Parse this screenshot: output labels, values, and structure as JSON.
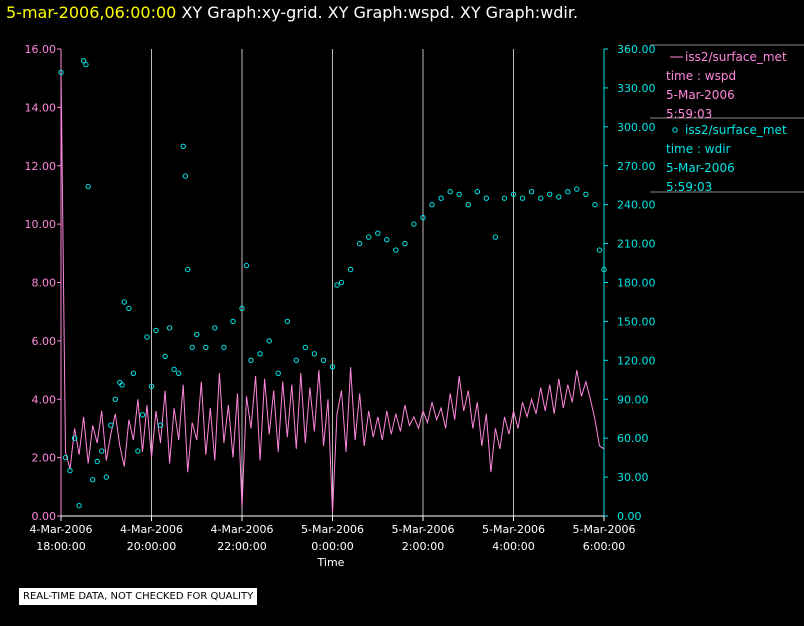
{
  "header": {
    "datetime": "5-mar-2006,06:00:00",
    "titles": "XY Graph:xy-grid.  XY Graph:wspd.  XY Graph:wdir."
  },
  "colors": {
    "wspd": "#ff88dd",
    "wdir": "#00e6e6",
    "grid": "#bbbbbb",
    "background": "#000000"
  },
  "footer": {
    "disclaimer": "REAL-TIME DATA, NOT CHECKED FOR QUALITY"
  },
  "chart_data": {
    "type": "line",
    "xlabel": "Time",
    "xlim_hours": [
      18,
      30
    ],
    "x_ticks": [
      {
        "h": 18,
        "date": "4-Mar-2006",
        "time": "18:00:00"
      },
      {
        "h": 20,
        "date": "4-Mar-2006",
        "time": "20:00:00"
      },
      {
        "h": 22,
        "date": "4-Mar-2006",
        "time": "22:00:00"
      },
      {
        "h": 24,
        "date": "5-Mar-2006",
        "time": "0:00:00"
      },
      {
        "h": 26,
        "date": "5-Mar-2006",
        "time": "2:00:00"
      },
      {
        "h": 28,
        "date": "5-Mar-2006",
        "time": "4:00:00"
      },
      {
        "h": 30,
        "date": "5-Mar-2006",
        "time": "6:00:00"
      }
    ],
    "y_left": {
      "ylim": [
        0,
        16
      ],
      "ticks": [
        "0.00",
        "2.00",
        "4.00",
        "6.00",
        "8.00",
        "10.00",
        "12.00",
        "14.00",
        "16.00"
      ]
    },
    "y_right": {
      "ylim": [
        0,
        360
      ],
      "ticks": [
        "0.00",
        "30.00",
        "60.00",
        "90.00",
        "120.00",
        "150.00",
        "180.00",
        "210.00",
        "240.00",
        "270.00",
        "300.00",
        "330.00",
        "360.00"
      ]
    },
    "legend": [
      {
        "series": "wspd",
        "lines": [
          "iss2/surface_met",
          "time : wspd",
          "5-Mar-2006",
          "5:59:03"
        ]
      },
      {
        "series": "wdir",
        "lines": [
          "iss2/surface_met",
          "time : wdir",
          "5-Mar-2006",
          "5:59:03"
        ]
      }
    ],
    "series": [
      {
        "name": "wspd",
        "axis": "left",
        "style": "line",
        "points": [
          [
            18.0,
            15.3
          ],
          [
            18.1,
            2.2
          ],
          [
            18.2,
            1.6
          ],
          [
            18.3,
            3.0
          ],
          [
            18.4,
            2.1
          ],
          [
            18.5,
            3.4
          ],
          [
            18.6,
            1.8
          ],
          [
            18.7,
            3.1
          ],
          [
            18.8,
            2.5
          ],
          [
            18.9,
            3.6
          ],
          [
            19.0,
            1.9
          ],
          [
            19.1,
            2.8
          ],
          [
            19.2,
            3.5
          ],
          [
            19.3,
            2.4
          ],
          [
            19.4,
            1.7
          ],
          [
            19.5,
            3.3
          ],
          [
            19.6,
            2.6
          ],
          [
            19.7,
            4.0
          ],
          [
            19.8,
            2.2
          ],
          [
            19.9,
            3.8
          ],
          [
            20.0,
            2.0
          ],
          [
            20.1,
            3.6
          ],
          [
            20.2,
            2.5
          ],
          [
            20.3,
            4.3
          ],
          [
            20.4,
            1.8
          ],
          [
            20.5,
            3.7
          ],
          [
            20.6,
            2.6
          ],
          [
            20.7,
            4.5
          ],
          [
            20.8,
            1.5
          ],
          [
            20.9,
            3.2
          ],
          [
            21.0,
            2.6
          ],
          [
            21.1,
            4.6
          ],
          [
            21.2,
            2.1
          ],
          [
            21.3,
            3.7
          ],
          [
            21.4,
            1.9
          ],
          [
            21.5,
            4.9
          ],
          [
            21.6,
            2.5
          ],
          [
            21.7,
            3.8
          ],
          [
            21.8,
            2.0
          ],
          [
            21.9,
            4.2
          ],
          [
            22.0,
            0.3
          ],
          [
            22.1,
            4.1
          ],
          [
            22.2,
            3.0
          ],
          [
            22.3,
            4.8
          ],
          [
            22.4,
            1.9
          ],
          [
            22.5,
            4.7
          ],
          [
            22.6,
            2.8
          ],
          [
            22.7,
            4.3
          ],
          [
            22.8,
            2.2
          ],
          [
            22.9,
            4.6
          ],
          [
            23.0,
            2.7
          ],
          [
            23.1,
            4.5
          ],
          [
            23.2,
            2.3
          ],
          [
            23.3,
            4.9
          ],
          [
            23.4,
            2.5
          ],
          [
            23.5,
            4.4
          ],
          [
            23.6,
            2.9
          ],
          [
            23.7,
            5.0
          ],
          [
            23.8,
            2.4
          ],
          [
            23.9,
            4.0
          ],
          [
            24.0,
            0.1
          ],
          [
            24.1,
            3.5
          ],
          [
            24.2,
            4.3
          ],
          [
            24.3,
            2.2
          ],
          [
            24.4,
            5.1
          ],
          [
            24.5,
            2.6
          ],
          [
            24.6,
            4.2
          ],
          [
            24.7,
            2.4
          ],
          [
            24.8,
            3.6
          ],
          [
            24.9,
            2.7
          ],
          [
            25.0,
            3.4
          ],
          [
            25.1,
            2.6
          ],
          [
            25.2,
            3.6
          ],
          [
            25.3,
            2.8
          ],
          [
            25.4,
            3.5
          ],
          [
            25.5,
            2.9
          ],
          [
            25.6,
            3.8
          ],
          [
            25.7,
            3.1
          ],
          [
            25.8,
            3.4
          ],
          [
            25.9,
            3.0
          ],
          [
            26.0,
            3.6
          ],
          [
            26.1,
            3.2
          ],
          [
            26.2,
            3.9
          ],
          [
            26.3,
            3.3
          ],
          [
            26.4,
            3.7
          ],
          [
            26.5,
            3.0
          ],
          [
            26.6,
            4.2
          ],
          [
            26.7,
            3.3
          ],
          [
            26.8,
            4.8
          ],
          [
            26.9,
            3.6
          ],
          [
            27.0,
            4.3
          ],
          [
            27.1,
            3.0
          ],
          [
            27.2,
            3.9
          ],
          [
            27.3,
            2.4
          ],
          [
            27.4,
            3.5
          ],
          [
            27.5,
            1.5
          ],
          [
            27.6,
            3.0
          ],
          [
            27.7,
            2.3
          ],
          [
            27.8,
            3.4
          ],
          [
            27.9,
            2.8
          ],
          [
            28.0,
            3.6
          ],
          [
            28.1,
            3.0
          ],
          [
            28.2,
            3.9
          ],
          [
            28.3,
            3.4
          ],
          [
            28.4,
            4.0
          ],
          [
            28.5,
            3.5
          ],
          [
            28.6,
            4.4
          ],
          [
            28.7,
            3.6
          ],
          [
            28.8,
            4.5
          ],
          [
            28.9,
            3.5
          ],
          [
            29.0,
            4.7
          ],
          [
            29.1,
            3.7
          ],
          [
            29.2,
            4.5
          ],
          [
            29.3,
            3.9
          ],
          [
            29.4,
            5.0
          ],
          [
            29.5,
            4.1
          ],
          [
            29.6,
            4.6
          ],
          [
            29.7,
            4.0
          ],
          [
            29.8,
            3.3
          ],
          [
            29.9,
            2.4
          ],
          [
            30.0,
            2.3
          ]
        ]
      },
      {
        "name": "wdir",
        "axis": "right",
        "style": "scatter",
        "points": [
          [
            18.0,
            342
          ],
          [
            18.1,
            45
          ],
          [
            18.2,
            35
          ],
          [
            18.3,
            60
          ],
          [
            18.4,
            8
          ],
          [
            18.5,
            351
          ],
          [
            18.55,
            348
          ],
          [
            18.6,
            254
          ],
          [
            18.7,
            28
          ],
          [
            18.8,
            42
          ],
          [
            18.9,
            50
          ],
          [
            19.0,
            30
          ],
          [
            19.1,
            70
          ],
          [
            19.2,
            90
          ],
          [
            19.3,
            103
          ],
          [
            19.35,
            101
          ],
          [
            19.4,
            165
          ],
          [
            19.5,
            160
          ],
          [
            19.6,
            110
          ],
          [
            19.7,
            50
          ],
          [
            19.8,
            78
          ],
          [
            19.9,
            138
          ],
          [
            20.0,
            100
          ],
          [
            20.1,
            143
          ],
          [
            20.2,
            70
          ],
          [
            20.3,
            123
          ],
          [
            20.4,
            145
          ],
          [
            20.5,
            113
          ],
          [
            20.6,
            110
          ],
          [
            20.7,
            285
          ],
          [
            20.75,
            262
          ],
          [
            20.8,
            190
          ],
          [
            20.9,
            130
          ],
          [
            21.0,
            140
          ],
          [
            21.2,
            130
          ],
          [
            21.4,
            145
          ],
          [
            21.6,
            130
          ],
          [
            21.8,
            150
          ],
          [
            22.0,
            160
          ],
          [
            22.1,
            193
          ],
          [
            22.2,
            120
          ],
          [
            22.4,
            125
          ],
          [
            22.6,
            135
          ],
          [
            22.8,
            110
          ],
          [
            23.0,
            150
          ],
          [
            23.2,
            120
          ],
          [
            23.4,
            130
          ],
          [
            23.6,
            125
          ],
          [
            23.8,
            120
          ],
          [
            24.0,
            115
          ],
          [
            24.1,
            178
          ],
          [
            24.2,
            180
          ],
          [
            24.4,
            190
          ],
          [
            24.6,
            210
          ],
          [
            24.8,
            215
          ],
          [
            25.0,
            218
          ],
          [
            25.2,
            213
          ],
          [
            25.4,
            205
          ],
          [
            25.6,
            210
          ],
          [
            25.8,
            225
          ],
          [
            26.0,
            230
          ],
          [
            26.2,
            240
          ],
          [
            26.4,
            245
          ],
          [
            26.6,
            250
          ],
          [
            26.8,
            248
          ],
          [
            27.0,
            240
          ],
          [
            27.2,
            250
          ],
          [
            27.4,
            245
          ],
          [
            27.6,
            215
          ],
          [
            27.8,
            245
          ],
          [
            28.0,
            248
          ],
          [
            28.2,
            245
          ],
          [
            28.4,
            250
          ],
          [
            28.6,
            245
          ],
          [
            28.8,
            248
          ],
          [
            29.0,
            246
          ],
          [
            29.2,
            250
          ],
          [
            29.4,
            252
          ],
          [
            29.6,
            248
          ],
          [
            29.8,
            240
          ],
          [
            29.9,
            205
          ],
          [
            30.0,
            190
          ]
        ]
      }
    ]
  }
}
